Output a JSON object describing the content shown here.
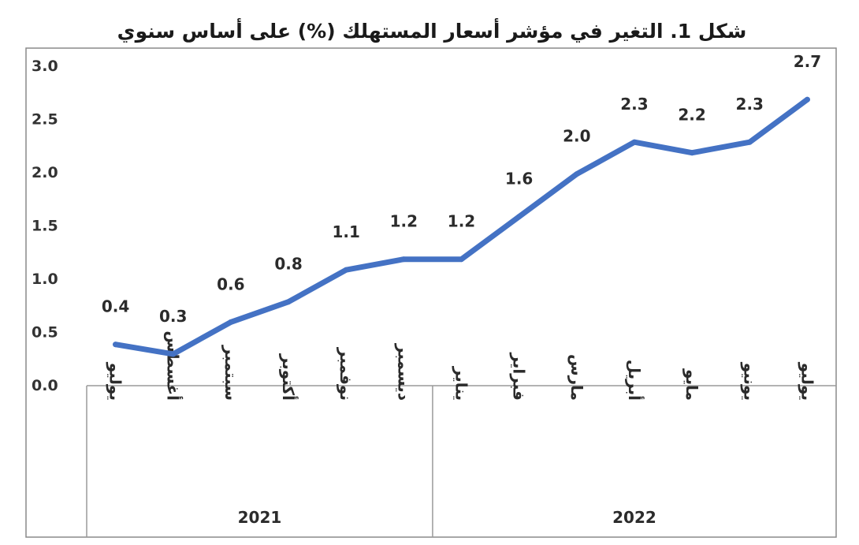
{
  "chart_data": {
    "type": "line",
    "title": "شكل 1. التغير في مؤشر أسعار المستهلك (%) على أساس سنوي",
    "categories": [
      "يوليو",
      "أغسطس",
      "سبتمبر",
      "أكتوبر",
      "نوفمبر",
      "ديسمبر",
      "يناير",
      "فبراير",
      "مارس",
      "أبريل",
      "مايو",
      "يونيو",
      "يوليو"
    ],
    "values": [
      0.38,
      0.29,
      0.59,
      0.78,
      1.08,
      1.18,
      1.18,
      1.58,
      1.98,
      2.28,
      2.18,
      2.28,
      2.68
    ],
    "data_labels": [
      "0.4",
      "0.3",
      "0.6",
      "0.8",
      "1.1",
      "1.2",
      "1.2",
      "1.6",
      "2.0",
      "2.3",
      "2.2",
      "2.3",
      "2.7"
    ],
    "groups": [
      {
        "label": "2021",
        "count": 6
      },
      {
        "label": "2022",
        "count": 7
      }
    ],
    "ylim": [
      0,
      3.0
    ],
    "yticks": [
      "0.0",
      "0.5",
      "1.0",
      "1.5",
      "2.0",
      "2.5",
      "3.0"
    ],
    "xlabel": "",
    "ylabel": "",
    "grid": false,
    "legend": "none",
    "series_color": "#4472C4"
  }
}
